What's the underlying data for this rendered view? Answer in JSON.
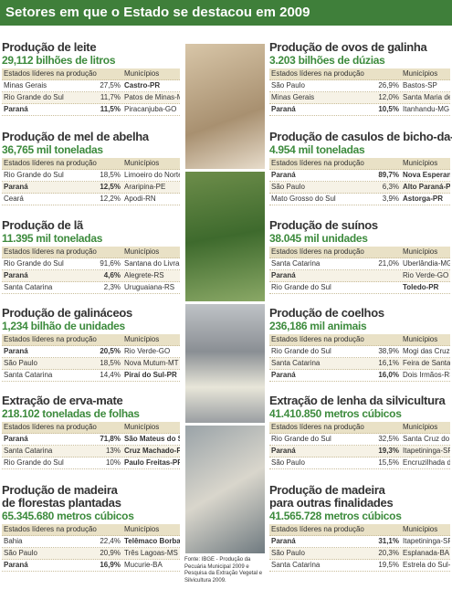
{
  "header": {
    "title": "Setores em que o Estado se destacou em 2009"
  },
  "left_sections": [
    {
      "title": [
        "Produção de leite"
      ],
      "subtitle": "29,112 bilhões de litros",
      "table": {
        "headers": [
          "Estados líderes na produção",
          "Municípios"
        ],
        "rows": [
          [
            "Minas Gerais",
            "27,5%",
            "Castro-PR"
          ],
          [
            "Rio Grande do Sul",
            "11,7%",
            "Patos de Minas-MG"
          ],
          [
            "Paraná",
            "11,5%",
            "Piracanjuba-GO"
          ]
        ],
        "bold_states": [
          2
        ],
        "bold_municipalities": [
          0
        ]
      }
    },
    {
      "title": [
        "Produção de mel de abelha"
      ],
      "subtitle": "36,765 mil toneladas",
      "table": {
        "headers": [
          "Estados líderes na produção",
          "Municípios"
        ],
        "rows": [
          [
            "Rio Grande do Sul",
            "18,5%",
            "Limoeiro do Norte-CE"
          ],
          [
            "Paraná",
            "12,5%",
            "Araripina-PE"
          ],
          [
            "Ceará",
            "12,2%",
            "Apodi-RN"
          ]
        ],
        "bold_states": [
          1
        ],
        "bold_municipalities": []
      }
    },
    {
      "title": [
        "Produção de lã"
      ],
      "subtitle": "11.395 mil toneladas",
      "table": {
        "headers": [
          "Estados líderes na produção",
          "Municípios"
        ],
        "rows": [
          [
            "Rio Grande do Sul",
            "91,6%",
            "Santana do Livramento-RS"
          ],
          [
            "Paraná",
            "4,6%",
            "Alegrete-RS"
          ],
          [
            "Santa Catarina",
            "2,3%",
            "Uruguaiana-RS"
          ]
        ],
        "bold_states": [
          1
        ],
        "bold_municipalities": []
      }
    },
    {
      "title": [
        "Produção de galináceos"
      ],
      "subtitle": "1,234 bilhão de unidades",
      "table": {
        "headers": [
          "Estados líderes na produção",
          "Municípios"
        ],
        "rows": [
          [
            "Paraná",
            "20,5%",
            "Rio Verde-GO"
          ],
          [
            "São Paulo",
            "18,5%",
            "Nova Mutum-MT"
          ],
          [
            "Santa Catarina",
            "14,4%",
            "Piraí do Sul-PR"
          ]
        ],
        "bold_states": [
          0
        ],
        "bold_municipalities": [
          2
        ]
      }
    },
    {
      "title": [
        "Extração de erva-mate"
      ],
      "subtitle": "218.102 toneladas de folhas",
      "table": {
        "headers": [
          "Estados líderes na produção",
          "Municípios"
        ],
        "rows": [
          [
            "Paraná",
            "71,8%",
            "São Mateus do Sul-PR"
          ],
          [
            "Santa Catarina",
            "13%",
            "Cruz Machado-PR"
          ],
          [
            "Rio Grande do Sul",
            "10%",
            "Paulo Freitas-PR"
          ]
        ],
        "bold_states": [
          0
        ],
        "bold_municipalities": [
          0,
          1,
          2
        ]
      }
    },
    {
      "title": [
        "Produção de madeira",
        "de florestas plantadas"
      ],
      "subtitle": "65.345.680 metros cúbicos",
      "table": {
        "headers": [
          "Estados líderes na produção",
          "Municípios"
        ],
        "rows": [
          [
            "Bahia",
            "22,4%",
            "Telêmaco Borba-PR"
          ],
          [
            "São Paulo",
            "20,9%",
            "Três Lagoas-MS"
          ],
          [
            "Paraná",
            "16,9%",
            "Mucurie-BA"
          ]
        ],
        "bold_states": [
          2
        ],
        "bold_municipalities": [
          0
        ]
      }
    }
  ],
  "right_sections": [
    {
      "title": [
        "Produção de ovos de galinha"
      ],
      "subtitle": "3.203 bilhões de dúzias",
      "table": {
        "headers": [
          "Estados líderes na produção",
          "Municípios"
        ],
        "rows": [
          [
            "São Paulo",
            "26,9%",
            "Bastos-SP"
          ],
          [
            "Minas Gerais",
            "12,0%",
            "Santa Maria de Jetibá-ES"
          ],
          [
            "Paraná",
            "10,5%",
            "Itanhandu-MG"
          ]
        ],
        "bold_states": [
          2
        ],
        "bold_municipalities": []
      }
    },
    {
      "title": [
        "Produção de casulos de bicho-da-seda"
      ],
      "subtitle": "4.954 mil toneladas",
      "table": {
        "headers": [
          "Estados líderes na produção",
          "Municípios"
        ],
        "rows": [
          [
            "Paraná",
            "89,7%",
            "Nova Esperança-PR"
          ],
          [
            "São Paulo",
            "6,3%",
            "Alto Paraná-PR"
          ],
          [
            "Mato Grosso do Sul",
            "3,9%",
            "Astorga-PR"
          ]
        ],
        "bold_states": [
          0
        ],
        "bold_municipalities": [
          0,
          1,
          2
        ]
      }
    },
    {
      "title": [
        "Produção de suínos"
      ],
      "subtitle": "38.045 mil unidades",
      "table": {
        "headers": [
          "Estados líderes na produção",
          "Municípios"
        ],
        "rows": [
          [
            "Santa Catarina",
            "21,0%",
            "Uberlândia-MG"
          ],
          [
            "Paraná",
            null,
            "Rio Verde-GO"
          ],
          [
            "Rio Grande do Sul",
            null,
            "Toledo-PR"
          ]
        ],
        "bold_states": [
          1
        ],
        "bold_municipalities": [
          2
        ]
      }
    },
    {
      "title": [
        "Produção de coelhos"
      ],
      "subtitle": "236,186 mil animais",
      "table": {
        "headers": [
          "Estados líderes na produção",
          "Municípios"
        ],
        "rows": [
          [
            "Rio Grande do Sul",
            "38,9%",
            "Mogi das Cruzes-SP"
          ],
          [
            "Santa Catarina",
            "16,1%",
            "Feira de Santana-BA"
          ],
          [
            "Paraná",
            "16,0%",
            "Dois Irmãos-RS"
          ]
        ],
        "bold_states": [
          2
        ],
        "bold_municipalities": []
      }
    },
    {
      "title": [
        "Extração de lenha da silvicultura"
      ],
      "subtitle": "41.410.850 metros cúbicos",
      "table": {
        "headers": [
          "Estados líderes na produção",
          "Municípios"
        ],
        "rows": [
          [
            "Rio Grande do Sul",
            "32,5%",
            "Santa Cruz do Sul-RS"
          ],
          [
            "Paraná",
            "19,3%",
            "Itapetininga-SP"
          ],
          [
            "São Paulo",
            "15,5%",
            "Encruzilhada do Sul-RS"
          ]
        ],
        "bold_states": [
          1
        ],
        "bold_municipalities": []
      }
    },
    {
      "title": [
        "Produção de madeira",
        "para outras finalidades"
      ],
      "subtitle": "41.565.728 metros cúbicos",
      "table": {
        "headers": [
          "Estados líderes na produção",
          "Municípios"
        ],
        "rows": [
          [
            "Paraná",
            "31,1%",
            "Itapetininga-SP"
          ],
          [
            "São Paulo",
            "20,3%",
            "Esplanada-BA"
          ],
          [
            "Santa Catarina",
            "19,5%",
            "Estrela do Sul-MG"
          ]
        ],
        "bold_states": [
          0
        ],
        "bold_municipalities": []
      }
    }
  ],
  "source": "Fonte: IBGE - Produção da Pecuária Municipal 2009 e Pesquisa da Extração Vegetal e Silvicultura 2009."
}
